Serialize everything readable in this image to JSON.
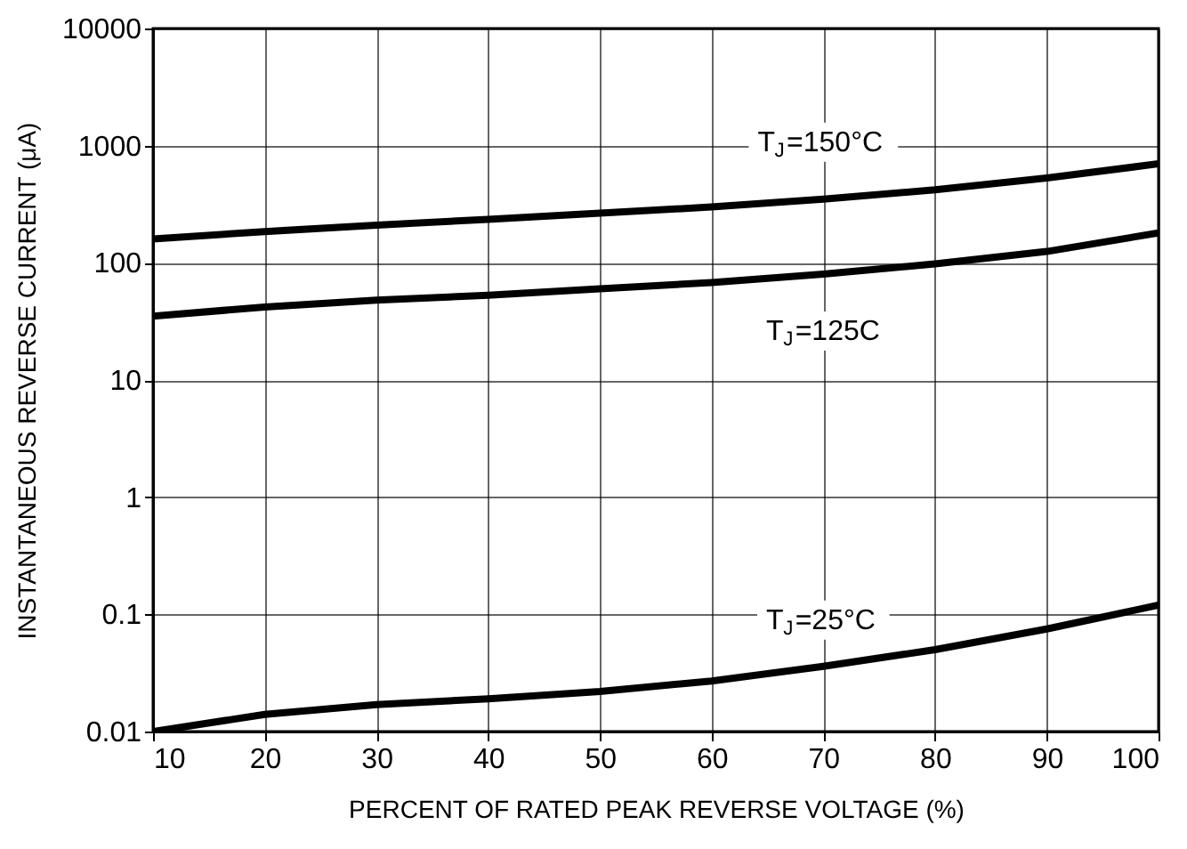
{
  "chart_data": {
    "type": "line",
    "xlabel": "PERCENT OF RATED PEAK REVERSE VOLTAGE (%)",
    "ylabel": "INSTANTANEOUS REVERSE CURRENT (μA)",
    "x": [
      10,
      20,
      30,
      40,
      50,
      60,
      70,
      80,
      90,
      100
    ],
    "series": [
      {
        "color": "#000000",
        "values": [
          160,
          185,
          210,
          235,
          265,
          300,
          350,
          420,
          530,
          700
        ]
      },
      {
        "color": "#000000",
        "values": [
          35,
          42,
          48,
          53,
          60,
          68,
          80,
          98,
          125,
          180
        ]
      },
      {
        "color": "#000000",
        "values": [
          0.01,
          0.014,
          0.017,
          0.019,
          0.022,
          0.027,
          0.036,
          0.05,
          0.075,
          0.12
        ]
      }
    ],
    "annotations": [
      "T$_{J}$=150°C",
      "T$_{J}$=125C",
      "T$_{J}$=25°C"
    ],
    "log": "y",
    "grid": true,
    "xlim": [
      10,
      100
    ],
    "xticks": [
      10,
      20,
      30,
      40,
      50,
      60,
      70,
      80,
      90,
      100
    ],
    "ylim": [
      0.01,
      10000
    ],
    "yticks": [
      0.01,
      0.1,
      1,
      10,
      100,
      1000,
      10000
    ],
    "marker": "none",
    "line_style": "solid"
  }
}
